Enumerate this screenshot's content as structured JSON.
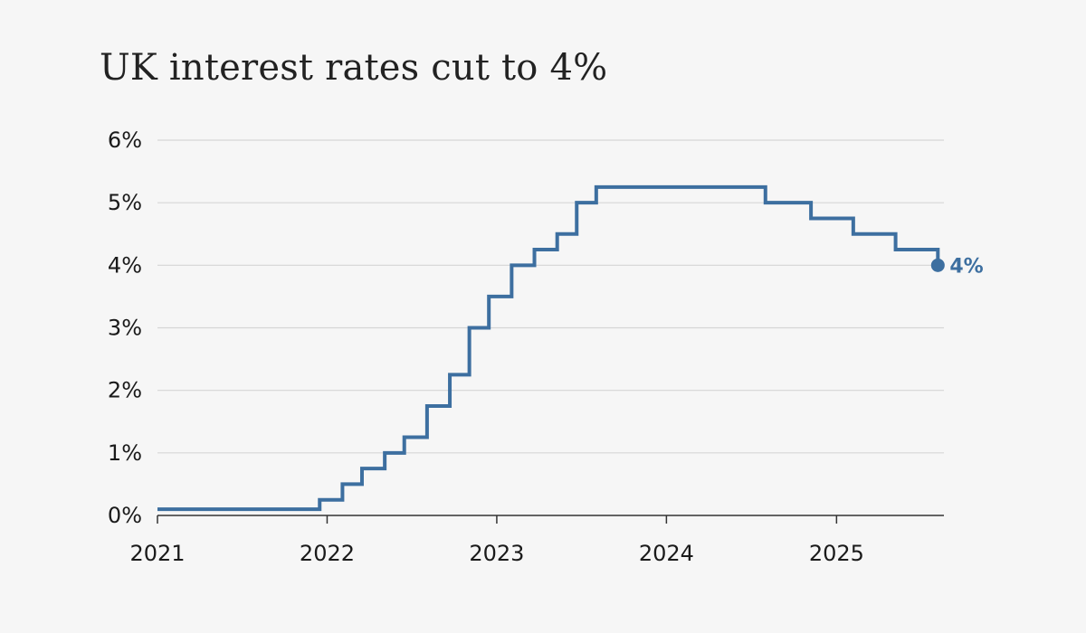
{
  "chart_data": {
    "type": "line",
    "title": "UK interest rates cut to 4%",
    "xlabel": "",
    "ylabel": "",
    "x_range": [
      "2021-01-01",
      "2025-08-20"
    ],
    "ylim": [
      0,
      6
    ],
    "y_ticks": [
      0,
      1,
      2,
      3,
      4,
      5,
      6
    ],
    "y_tick_labels": [
      "0%",
      "1%",
      "2%",
      "3%",
      "4%",
      "5%",
      "6%"
    ],
    "x_ticks": [
      "2021-01-01",
      "2022-01-01",
      "2023-01-01",
      "2024-01-01",
      "2025-01-01"
    ],
    "x_tick_labels": [
      "2021",
      "2022",
      "2023",
      "2024",
      "2025"
    ],
    "grid": true,
    "step": "after",
    "series": [
      {
        "color": "#3d6fa0",
        "points": [
          {
            "date": "2021-01-01",
            "rate": 0.1
          },
          {
            "date": "2021-12-16",
            "rate": 0.25
          },
          {
            "date": "2022-02-03",
            "rate": 0.5
          },
          {
            "date": "2022-03-17",
            "rate": 0.75
          },
          {
            "date": "2022-05-05",
            "rate": 1.0
          },
          {
            "date": "2022-06-16",
            "rate": 1.25
          },
          {
            "date": "2022-08-04",
            "rate": 1.75
          },
          {
            "date": "2022-09-22",
            "rate": 2.25
          },
          {
            "date": "2022-11-03",
            "rate": 3.0
          },
          {
            "date": "2022-12-15",
            "rate": 3.5
          },
          {
            "date": "2023-02-02",
            "rate": 4.0
          },
          {
            "date": "2023-03-23",
            "rate": 4.25
          },
          {
            "date": "2023-05-11",
            "rate": 4.5
          },
          {
            "date": "2023-06-22",
            "rate": 5.0
          },
          {
            "date": "2023-08-03",
            "rate": 5.25
          },
          {
            "date": "2024-08-01",
            "rate": 5.0
          },
          {
            "date": "2024-11-07",
            "rate": 4.75
          },
          {
            "date": "2025-02-06",
            "rate": 4.5
          },
          {
            "date": "2025-05-08",
            "rate": 4.25
          },
          {
            "date": "2025-08-07",
            "rate": 4.0
          }
        ]
      }
    ],
    "annotations": [
      {
        "date": "2025-08-07",
        "rate": 4.0,
        "text": "4%"
      }
    ]
  }
}
